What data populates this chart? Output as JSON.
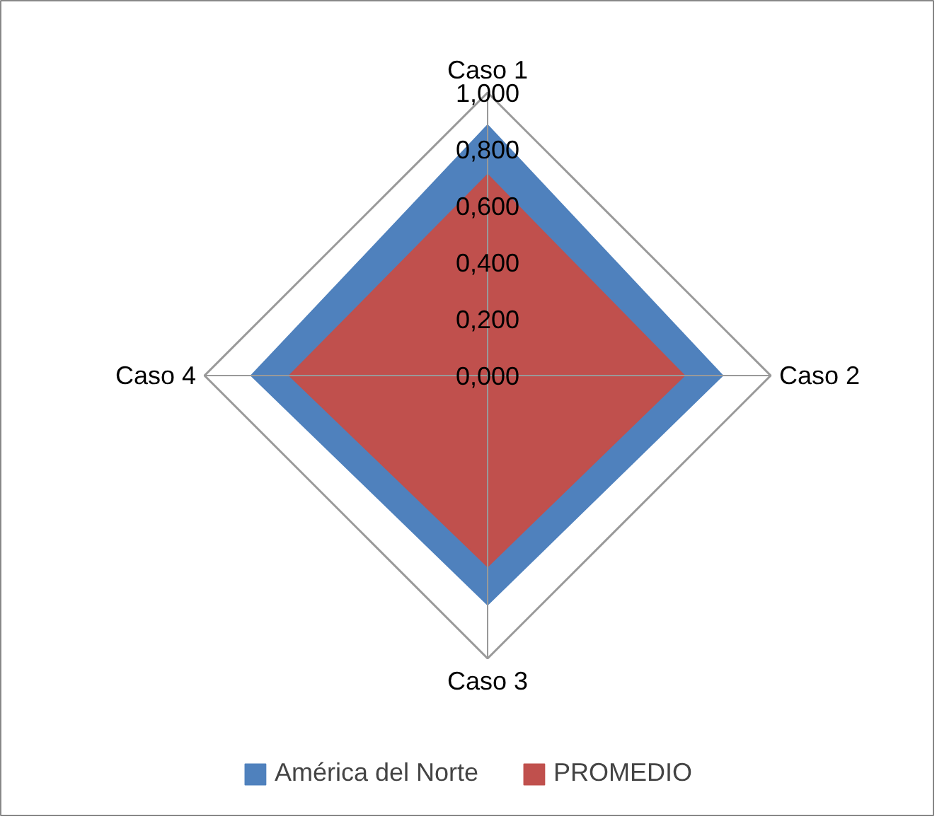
{
  "chart_data": {
    "type": "radar",
    "categories": [
      "Caso 1",
      "Caso 2",
      "Caso 3",
      "Caso 4"
    ],
    "series": [
      {
        "name": "América del Norte",
        "color": "#4f81bd",
        "values": [
          0.885,
          0.83,
          0.81,
          0.835
        ]
      },
      {
        "name": "PROMEDIO",
        "color": "#c0504d",
        "values": [
          0.71,
          0.695,
          0.675,
          0.7
        ]
      }
    ],
    "ylim": [
      0,
      1
    ],
    "yticks": [
      {
        "value": 0,
        "label": "0,000"
      },
      {
        "value": 0.2,
        "label": "0,200"
      },
      {
        "value": 0.4,
        "label": "0,400"
      },
      {
        "value": 0.6,
        "label": "0,600"
      },
      {
        "value": 0.8,
        "label": "0,800"
      },
      {
        "value": 1,
        "label": "1,000"
      }
    ],
    "legend": "bottom"
  }
}
